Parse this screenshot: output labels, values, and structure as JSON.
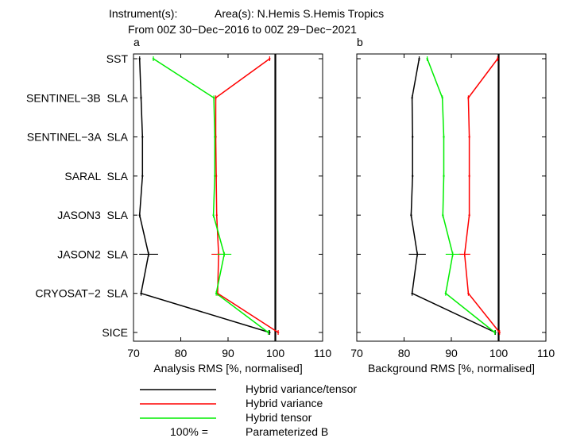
{
  "header": {
    "line1_instrument": "Instrument(s):",
    "line1_area": "Area(s): N.Hemis S.Hemis Tropics",
    "line2": "From 00Z 30−Dec−2016 to 00Z 29−Dec−2021"
  },
  "legend": {
    "items": [
      {
        "label": "Hybrid variance/tensor",
        "color": "#000000"
      },
      {
        "label": "Hybrid variance",
        "color": "#ff0000"
      },
      {
        "label": "Hybrid tensor",
        "color": "#00ee00"
      }
    ],
    "ref_key": "100% =",
    "ref_label": "Parameterized B"
  },
  "chart_data": [
    {
      "type": "line",
      "panel_label": "a",
      "xlabel": "Analysis RMS [%, normalised]",
      "xlim": [
        70,
        110
      ],
      "xticks": [
        70,
        80,
        90,
        100,
        110
      ],
      "reference_x": 100,
      "categories": [
        "SST",
        "SENTINEL−3B  SLA",
        "SENTINEL−3A  SLA",
        "SARAL  SLA",
        "JASON3  SLA",
        "JASON2  SLA",
        "CRYOSAT−2  SLA",
        "SICE"
      ],
      "series": [
        {
          "name": "Hybrid variance/tensor",
          "color": "#000000",
          "values": [
            71.3,
            71.6,
            71.9,
            71.9,
            71.3,
            73.2,
            71.6,
            98.8
          ],
          "errors": [
            0,
            0,
            0,
            0,
            0,
            2.0,
            0,
            0
          ]
        },
        {
          "name": "Hybrid variance",
          "color": "#ff0000",
          "values": [
            98.8,
            87.4,
            87.4,
            87.5,
            87.6,
            88.0,
            87.8,
            100.6
          ],
          "errors": [
            0,
            0,
            0,
            0,
            0,
            1.5,
            0,
            0
          ]
        },
        {
          "name": "Hybrid tensor",
          "color": "#00ee00",
          "values": [
            74.2,
            87.0,
            87.2,
            87.2,
            86.9,
            89.2,
            87.5,
            98.5
          ],
          "errors": [
            0,
            0,
            0,
            0,
            0,
            1.5,
            0,
            0
          ]
        }
      ]
    },
    {
      "type": "line",
      "panel_label": "b",
      "xlabel": "Background RMS [%, normalised]",
      "xlim": [
        70,
        110
      ],
      "xticks": [
        70,
        80,
        90,
        100,
        110
      ],
      "reference_x": 100,
      "categories": [
        "SST",
        "SENTINEL−3B  SLA",
        "SENTINEL−3A  SLA",
        "SARAL  SLA",
        "JASON3  SLA",
        "JASON2  SLA",
        "CRYOSAT−2  SLA",
        "SICE"
      ],
      "series": [
        {
          "name": "Hybrid variance/tensor",
          "color": "#000000",
          "values": [
            83.2,
            81.7,
            81.8,
            81.8,
            81.5,
            82.8,
            81.7,
            99.3
          ],
          "errors": [
            0,
            0,
            0,
            0,
            0,
            1.8,
            0,
            0
          ]
        },
        {
          "name": "Hybrid variance",
          "color": "#ff0000",
          "values": [
            99.8,
            93.6,
            93.8,
            93.8,
            93.8,
            92.8,
            93.6,
            100.2
          ],
          "errors": [
            0,
            0,
            0,
            0,
            0,
            1.2,
            0,
            0
          ]
        },
        {
          "name": "Hybrid tensor",
          "color": "#00ee00",
          "values": [
            84.9,
            88.1,
            88.4,
            88.4,
            88.2,
            90.3,
            88.8,
            99.2
          ],
          "errors": [
            0,
            0,
            0,
            0,
            0,
            1.5,
            0,
            0
          ]
        }
      ]
    }
  ]
}
